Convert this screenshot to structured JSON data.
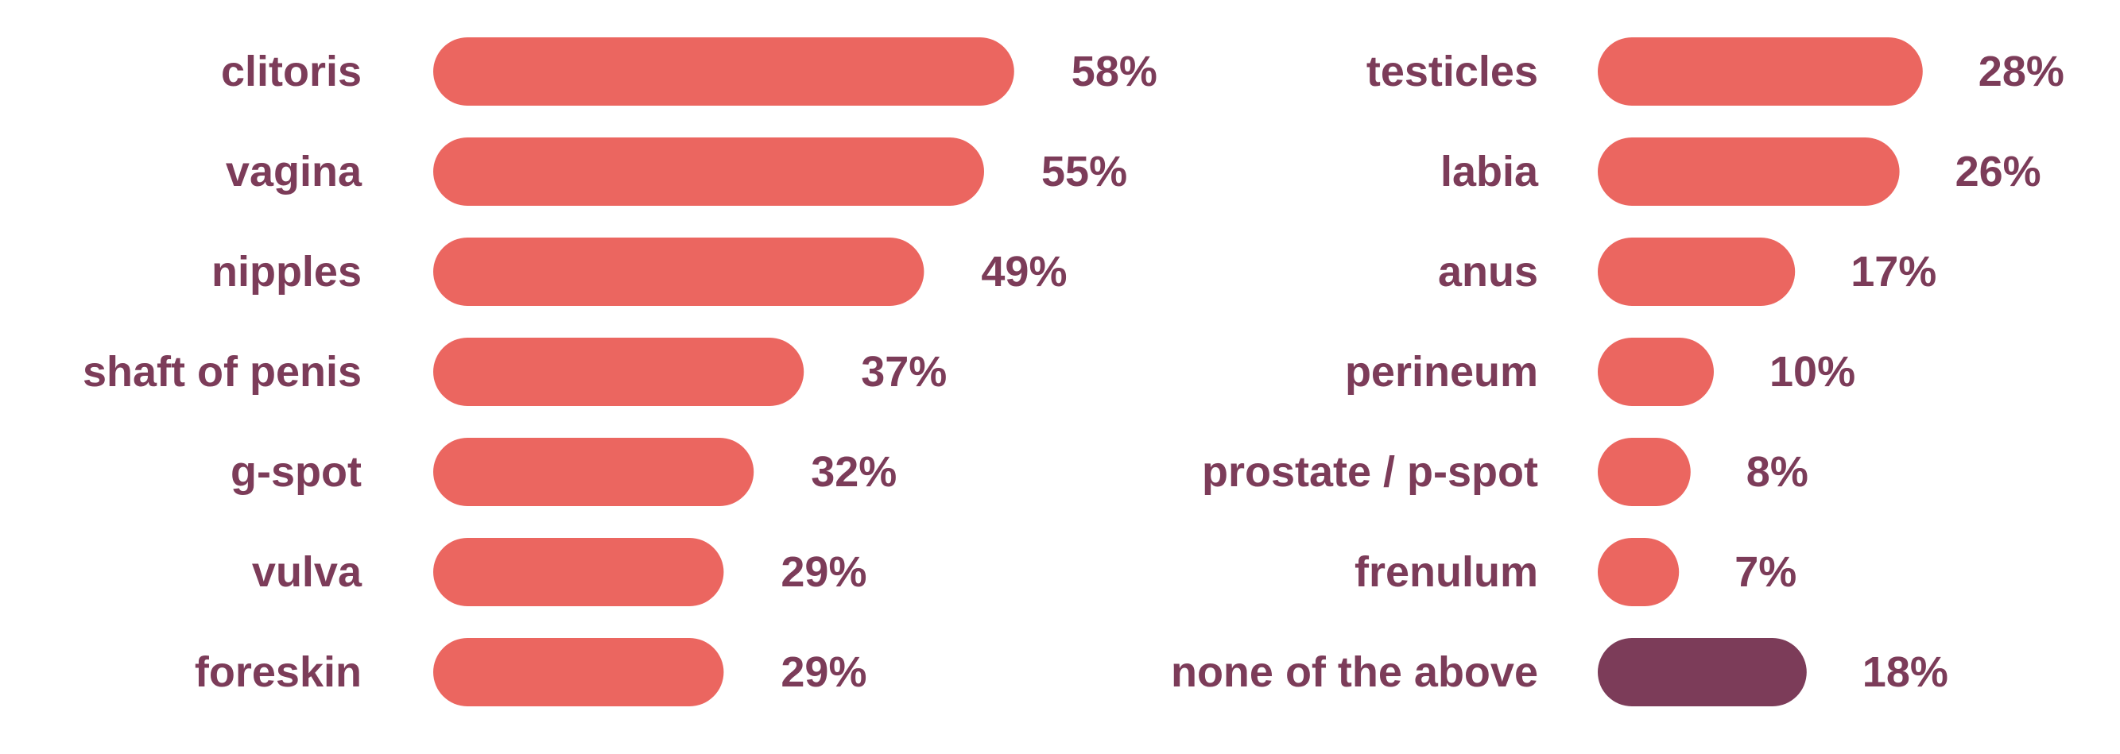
{
  "chart_data": [
    {
      "type": "bar",
      "orientation": "horizontal",
      "categories": [
        "clitoris",
        "vagina",
        "nipples",
        "shaft of penis",
        "g-spot",
        "vulva",
        "foreskin"
      ],
      "values": [
        58,
        55,
        49,
        37,
        32,
        29,
        29
      ],
      "value_labels": [
        "58%",
        "55%",
        "49%",
        "37%",
        "32%",
        "29%",
        "29%"
      ],
      "highlight": [
        false,
        false,
        false,
        false,
        false,
        false,
        false
      ]
    },
    {
      "type": "bar",
      "orientation": "horizontal",
      "categories": [
        "testicles",
        "labia",
        "anus",
        "perineum",
        "prostate / p-spot",
        "frenulum",
        "none of the above"
      ],
      "values": [
        28,
        26,
        17,
        10,
        8,
        7,
        18
      ],
      "value_labels": [
        "28%",
        "26%",
        "17%",
        "10%",
        "8%",
        "7%",
        "18%"
      ],
      "highlight": [
        false,
        false,
        false,
        false,
        false,
        false,
        true
      ]
    }
  ],
  "colors": {
    "bar": "#eb6660",
    "bar_highlight": "#7c3c59",
    "label": "#7c3c59",
    "background": "#ffffff"
  }
}
